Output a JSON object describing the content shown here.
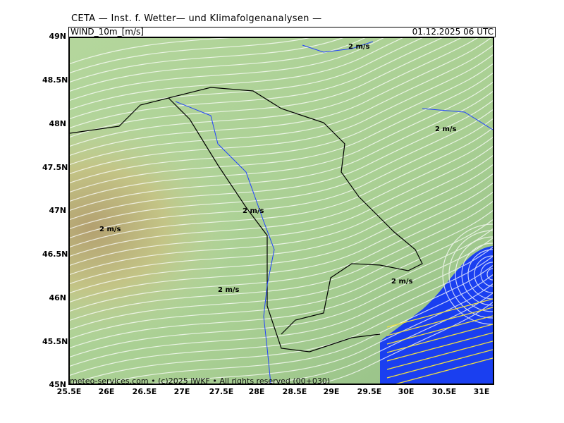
{
  "header": {
    "title": "CETA — Inst. f. Wetter— und Klimafolgenanalysen —",
    "variable": "WIND_10m_[m/s]",
    "datetime": "01.12.2025 06 UTC"
  },
  "footer": {
    "credit": "meteo-services.com • (c)2025 IWKF • All rights reserved (00+030)"
  },
  "axes": {
    "lat_labels": [
      "49N",
      "48.5N",
      "48N",
      "47.5N",
      "47N",
      "46.5N",
      "46N",
      "45.5N",
      "45N"
    ],
    "lon_labels": [
      "25.5E",
      "26E",
      "26.5E",
      "27E",
      "27.5E",
      "28E",
      "28.5E",
      "29E",
      "29.5E",
      "30E",
      "30.5E",
      "31E"
    ]
  },
  "map_labels": [
    "2 m/s",
    "2 m/s",
    "2 m/s",
    "2 m/s",
    "2 m/s",
    "2 m/s"
  ],
  "colors": {
    "land_wind": "#b8d8a0",
    "terrain": "#b9a878",
    "sea_high_wind": "#1a3ff0",
    "streamline": "#ffffff",
    "strong_streamline": "#f0e040",
    "border": "#000000",
    "river": "#2040ff"
  }
}
